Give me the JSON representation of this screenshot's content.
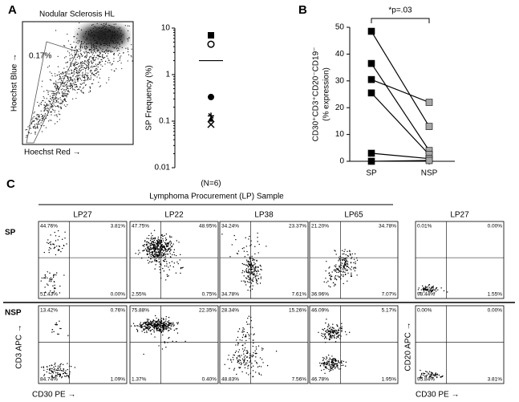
{
  "panel_labels": [
    "A",
    "B",
    "C"
  ],
  "panel_a_flow": {
    "title": "Nodular Sclerosis HL",
    "gate_label": "0.17%",
    "x_label": "Hoechst Red →",
    "y_label": "Hoechst Blue →"
  },
  "chart_data": [
    {
      "type": "scatter",
      "y_label": "SP Frequency (%)",
      "x_label": "(N=6)",
      "log_y": true,
      "ylim": [
        0.01,
        10
      ],
      "yticks": [
        10,
        1,
        0.1,
        0.01
      ],
      "color": "#000000",
      "points": [
        {
          "y": 7,
          "marker": "square"
        },
        {
          "y": 4.5,
          "marker": "open-circle"
        },
        {
          "y": 0.33,
          "marker": "circle"
        },
        {
          "y": 0.13,
          "marker": "plus"
        },
        {
          "y": 0.11,
          "marker": "triangle"
        },
        {
          "y": 0.085,
          "marker": "x"
        }
      ],
      "mean": 2
    },
    {
      "type": "paired-line",
      "y_label": [
        "CD30⁺CD3⁺CD20⁻CD19⁻",
        "(% expression)"
      ],
      "categories": [
        "SP",
        "NSP"
      ],
      "marker_colors": [
        "#000000",
        "#a6a6a6"
      ],
      "ylim": [
        0,
        50
      ],
      "yticks": [
        0,
        10,
        20,
        30,
        40,
        50
      ],
      "annotation": "*p=.03",
      "series": [
        {
          "values": [
            48.5,
            13
          ]
        },
        {
          "values": [
            36.5,
            4
          ]
        },
        {
          "values": [
            30.5,
            22
          ]
        },
        {
          "values": [
            25.5,
            2.5
          ]
        },
        {
          "values": [
            3,
            1
          ]
        },
        {
          "values": [
            0,
            0.3
          ]
        }
      ]
    }
  ],
  "panel_c": {
    "header": "Lymphoma Procurement (LP) Sample",
    "columns": [
      "LP27",
      "LP22",
      "LP38",
      "LP65",
      "LP27"
    ],
    "y_label": "CD3 APC →",
    "x_label": "CD30 PE →",
    "y_label_2": "CD20 APC →",
    "x_label_2": "CD30 PE →",
    "rows": [
      {
        "label": "SP",
        "plots": [
          [
            "44.76%",
            "3.81%",
            "51.43%",
            "0.00%"
          ],
          [
            "47.75%",
            "48.95%",
            "2.55%",
            "0.75%"
          ],
          [
            "34.24%",
            "23.37%",
            "34.78%",
            "7.61%"
          ],
          [
            "21.20%",
            "34.78%",
            "36.96%",
            "7.07%"
          ],
          [
            "0.01%",
            "0.00%",
            "98.44%",
            "1.55%"
          ]
        ]
      },
      {
        "label": "NSP",
        "plots": [
          [
            "13.42%",
            "0.76%",
            "84.74%",
            "1.09%"
          ],
          [
            "75.88%",
            "22.35%",
            "1.37%",
            "0.40%"
          ],
          [
            "28.34%",
            "15.26%",
            "48.83%",
            "7.56%"
          ],
          [
            "46.09%",
            "5.17%",
            "46.78%",
            "1.95%"
          ],
          [
            "0.00%",
            "0.00%",
            "95.84%",
            "3.81%"
          ]
        ]
      }
    ]
  }
}
